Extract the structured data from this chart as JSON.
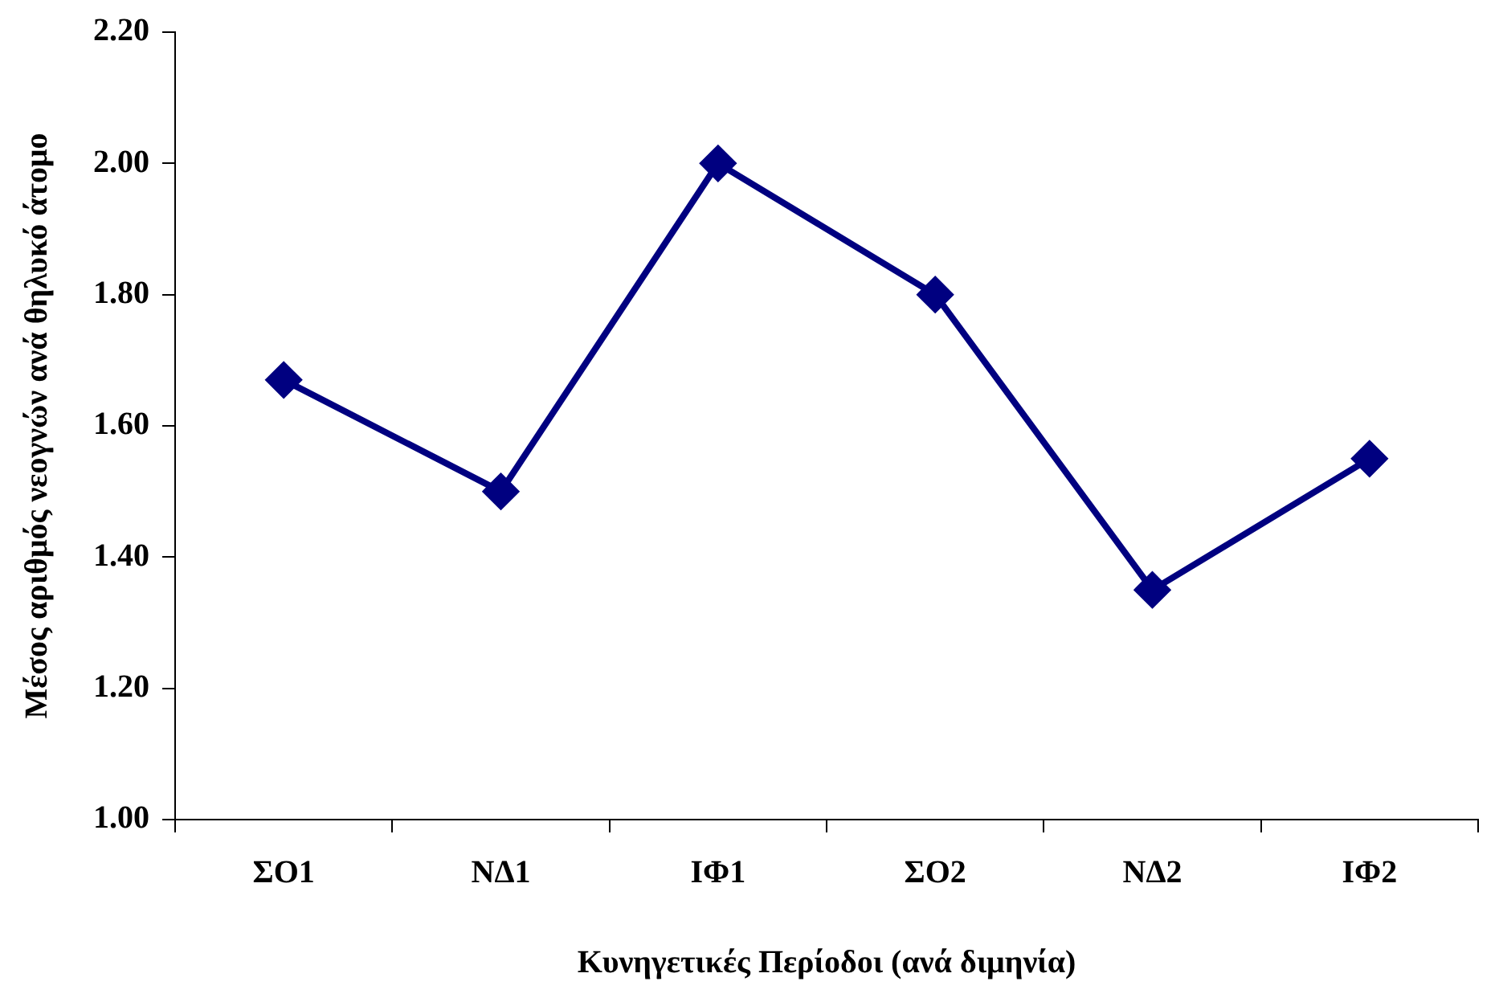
{
  "chart_data": {
    "type": "line",
    "xlabel": "Κυνηγετικές Περίοδοι (ανά διμηνία)",
    "ylabel": "Μέσος αριθμός νεογνών ανά θηλυκό άτομο",
    "categories": [
      "ΣΟ1",
      "ΝΔ1",
      "ΙΦ1",
      "ΣΟ2",
      "ΝΔ2",
      "ΙΦ2"
    ],
    "series": [
      {
        "color": "#000080",
        "values": [
          1.67,
          1.5,
          2.0,
          1.8,
          1.35,
          1.55
        ]
      }
    ],
    "ylim": [
      1.0,
      2.2
    ],
    "yticks": [
      {
        "value": 1.0,
        "label": "1.00"
      },
      {
        "value": 1.2,
        "label": "1.20"
      },
      {
        "value": 1.4,
        "label": "1.40"
      },
      {
        "value": 1.6,
        "label": "1.60"
      },
      {
        "value": 1.8,
        "label": "1.80"
      },
      {
        "value": 2.0,
        "label": "2.00"
      },
      {
        "value": 2.2,
        "label": "2.20"
      }
    ],
    "grid": false,
    "legend": false,
    "marker": "diamond",
    "line_style": "solid"
  }
}
